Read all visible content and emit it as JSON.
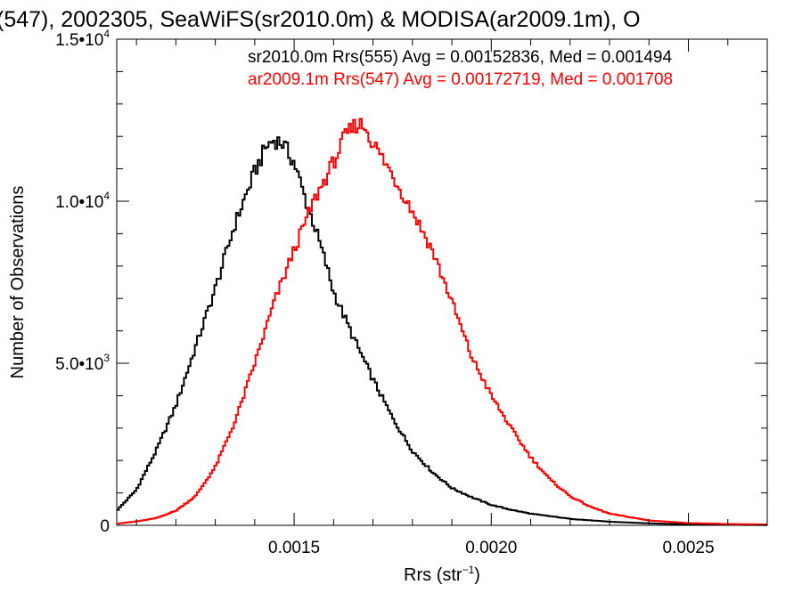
{
  "chart_data": {
    "type": "line",
    "title": "(547), 2002305, SeaWiFS(sr2010.0m) & MODISA(ar2009.1m), O",
    "xlabel": "Rrs (str",
    "xlabel_sup": "−1",
    "xlabel_close": ")",
    "ylabel": "Number of Observations",
    "xlim": [
      0.00105,
      0.0027
    ],
    "ylim": [
      0,
      15000
    ],
    "x_ticks": [
      {
        "value": 0.0015,
        "label": "0.0015"
      },
      {
        "value": 0.002,
        "label": "0.0020"
      },
      {
        "value": 0.0025,
        "label": "0.0025"
      }
    ],
    "y_ticks": [
      {
        "value": 0,
        "mant": "0",
        "exp": ""
      },
      {
        "value": 5000,
        "mant": "5.0•10",
        "exp": "3"
      },
      {
        "value": 10000,
        "mant": "1.0•10",
        "exp": "4"
      },
      {
        "value": 15000,
        "mant": "1.5•10",
        "exp": "4"
      }
    ],
    "grid": false,
    "legend_position": "top-right",
    "series": [
      {
        "name": "sr2010.0m Rrs(555) Avg = 0.00152836, Med = 0.001494",
        "color": "#000000",
        "points": [
          [
            0.00105,
            450
          ],
          [
            0.0011,
            1100
          ],
          [
            0.00115,
            2300
          ],
          [
            0.0012,
            3700
          ],
          [
            0.00125,
            5500
          ],
          [
            0.0013,
            7300
          ],
          [
            0.00135,
            9300
          ],
          [
            0.0014,
            10900
          ],
          [
            0.00143,
            11700
          ],
          [
            0.00145,
            11900
          ],
          [
            0.00147,
            11800
          ],
          [
            0.0015,
            11200
          ],
          [
            0.00153,
            10000
          ],
          [
            0.00155,
            9300
          ],
          [
            0.00158,
            8100
          ],
          [
            0.0016,
            7200
          ],
          [
            0.00165,
            5800
          ],
          [
            0.0017,
            4500
          ],
          [
            0.00175,
            3300
          ],
          [
            0.0018,
            2300
          ],
          [
            0.00185,
            1650
          ],
          [
            0.0019,
            1150
          ],
          [
            0.00195,
            870
          ],
          [
            0.002,
            630
          ],
          [
            0.00205,
            480
          ],
          [
            0.0021,
            360
          ],
          [
            0.0022,
            200
          ],
          [
            0.0023,
            110
          ],
          [
            0.0024,
            60
          ],
          [
            0.0025,
            30
          ],
          [
            0.0026,
            15
          ],
          [
            0.0027,
            8
          ]
        ]
      },
      {
        "name": "ar2009.1m Rrs(547) Avg = 0.00172719, Med = 0.001708",
        "color": "#ff0000",
        "points": [
          [
            0.00105,
            50
          ],
          [
            0.0011,
            120
          ],
          [
            0.00115,
            220
          ],
          [
            0.0012,
            450
          ],
          [
            0.00125,
            900
          ],
          [
            0.0013,
            1800
          ],
          [
            0.00135,
            3200
          ],
          [
            0.0014,
            5000
          ],
          [
            0.00145,
            6900
          ],
          [
            0.0015,
            8500
          ],
          [
            0.00155,
            10000
          ],
          [
            0.0016,
            11200
          ],
          [
            0.00163,
            12000
          ],
          [
            0.00166,
            12400
          ],
          [
            0.00168,
            12300
          ],
          [
            0.0017,
            11800
          ],
          [
            0.00175,
            10800
          ],
          [
            0.0018,
            9700
          ],
          [
            0.00185,
            8500
          ],
          [
            0.0019,
            6900
          ],
          [
            0.00195,
            5200
          ],
          [
            0.002,
            4000
          ],
          [
            0.00205,
            3000
          ],
          [
            0.0021,
            2100
          ],
          [
            0.00215,
            1400
          ],
          [
            0.0022,
            900
          ],
          [
            0.00225,
            580
          ],
          [
            0.0023,
            360
          ],
          [
            0.0024,
            150
          ],
          [
            0.0025,
            70
          ],
          [
            0.0026,
            40
          ],
          [
            0.0027,
            25
          ]
        ]
      }
    ]
  }
}
